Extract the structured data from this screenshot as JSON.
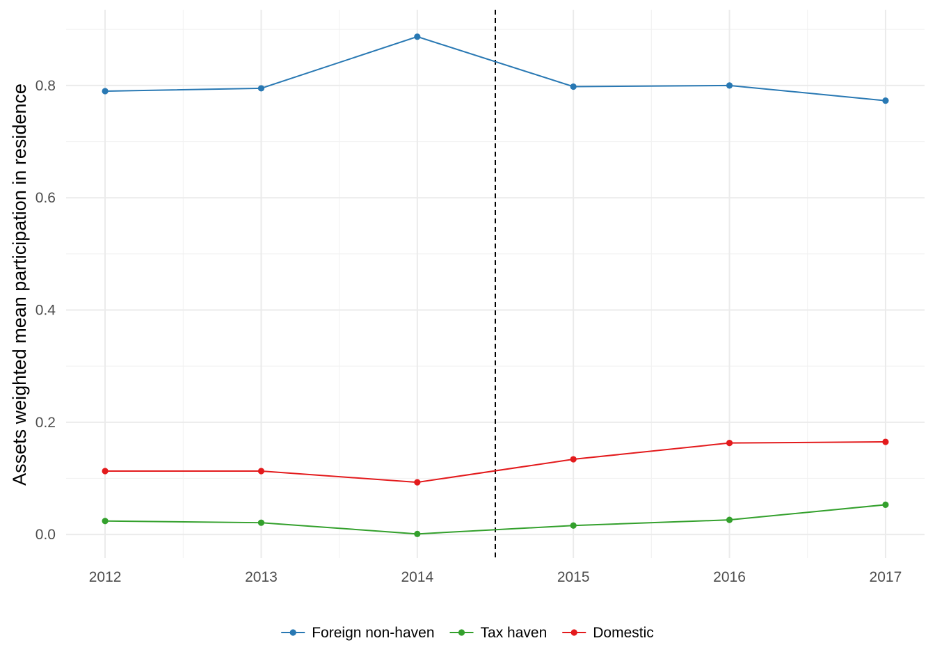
{
  "chart_data": {
    "type": "line",
    "title": "",
    "xlabel": "",
    "ylabel": "Assets weighted mean participation in residence",
    "x": [
      2012,
      2013,
      2014,
      2015,
      2016,
      2017
    ],
    "x_tick_labels": [
      "2012",
      "2013",
      "2014",
      "2015",
      "2016",
      "2017"
    ],
    "y_ticks": [
      0.0,
      0.2,
      0.4,
      0.6,
      0.8
    ],
    "y_tick_labels": [
      "0.0",
      "0.2",
      "0.4",
      "0.6",
      "0.8"
    ],
    "xlim": [
      2011.75,
      2017.25
    ],
    "ylim": [
      -0.042,
      0.935
    ],
    "vline": {
      "x": 2014.5,
      "style": "dashed",
      "color": "#000000"
    },
    "grid": true,
    "legend_position": "bottom",
    "series": [
      {
        "name": "Foreign non-haven",
        "color": "#2878b3",
        "values": [
          0.79,
          0.795,
          0.887,
          0.798,
          0.8,
          0.773
        ]
      },
      {
        "name": "Tax haven",
        "color": "#33a02c",
        "values": [
          0.024,
          0.021,
          0.001,
          0.016,
          0.026,
          0.053
        ]
      },
      {
        "name": "Domestic",
        "color": "#e31a1c",
        "values": [
          0.113,
          0.113,
          0.093,
          0.134,
          0.163,
          0.165
        ]
      }
    ]
  }
}
